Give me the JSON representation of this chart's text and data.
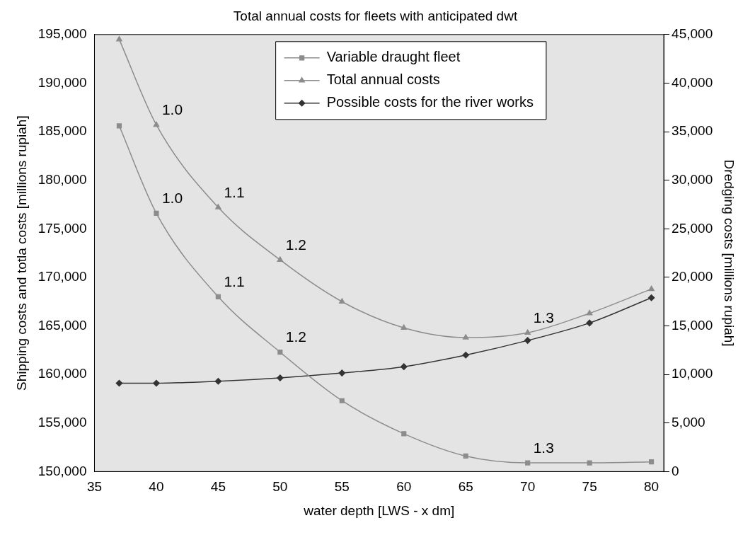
{
  "chart_data": {
    "type": "line",
    "title": "Total annual costs for fleets with anticipated dwt",
    "xlabel": "water depth [LWS - x dm]",
    "ylabel": "Shipping costs and totla costs [millions rupiah]",
    "y2label": "Dredging costs [millions rupiah]",
    "x": [
      37,
      40,
      45,
      50,
      55,
      60,
      65,
      70,
      75,
      80
    ],
    "series": [
      {
        "name": "Variable draught fleet",
        "color": "#8c8c8c",
        "marker": "square",
        "values": [
          185600,
          176600,
          168000,
          162300,
          157300,
          153900,
          151600,
          150900,
          150900,
          151000
        ]
      },
      {
        "name": "Total annual costs",
        "color": "#8c8c8c",
        "marker": "triangle",
        "values": [
          194500,
          185700,
          177200,
          171800,
          167500,
          164800,
          163800,
          164300,
          166300,
          168800
        ]
      },
      {
        "name": "Possible costs for the river works",
        "color": "#333333",
        "marker": "diamond",
        "axis": "y2",
        "values": [
          9100,
          9100,
          9300,
          9650,
          10150,
          10800,
          12000,
          13500,
          15300,
          17900
        ]
      }
    ],
    "xlim": [
      35,
      81
    ],
    "xticks": [
      35,
      40,
      45,
      50,
      55,
      60,
      65,
      70,
      75,
      80
    ],
    "ylim": [
      150000,
      195000
    ],
    "yticks": [
      {
        "value": 150000,
        "label": "150,000"
      },
      {
        "value": 155000,
        "label": "155,000"
      },
      {
        "value": 160000,
        "label": "160,000"
      },
      {
        "value": 165000,
        "label": "165,000"
      },
      {
        "value": 170000,
        "label": "170,000"
      },
      {
        "value": 175000,
        "label": "175,000"
      },
      {
        "value": 180000,
        "label": "180,000"
      },
      {
        "value": 185000,
        "label": "185,000"
      },
      {
        "value": 190000,
        "label": "190,000"
      },
      {
        "value": 195000,
        "label": "195,000"
      }
    ],
    "y2lim": [
      0,
      45000
    ],
    "y2ticks": [
      0,
      {
        "value": 5000,
        "label": "5,000"
      },
      {
        "value": 10000,
        "label": "10,000"
      },
      {
        "value": 15000,
        "label": "15,000"
      },
      {
        "value": 20000,
        "label": "20,000"
      },
      {
        "value": 25000,
        "label": "25,000"
      },
      {
        "value": 30000,
        "label": "30,000"
      },
      {
        "value": 35000,
        "label": "35,000"
      },
      {
        "value": 40000,
        "label": "40,000"
      },
      {
        "value": 45000,
        "label": "45,000"
      }
    ],
    "annotations": [
      {
        "text": "1.0",
        "x": 40,
        "y": 185700
      },
      {
        "text": "1.1",
        "x": 45,
        "y": 177200
      },
      {
        "text": "1.2",
        "x": 50,
        "y": 171800
      },
      {
        "text": "1.3",
        "x": 70,
        "y": 164300
      },
      {
        "text": "1.0",
        "x": 40,
        "y": 176600
      },
      {
        "text": "1.1",
        "x": 45,
        "y": 168000
      },
      {
        "text": "1.2",
        "x": 50,
        "y": 162300
      },
      {
        "text": "1.3",
        "x": 70,
        "y": 150900
      }
    ],
    "grid": false,
    "legend": "top",
    "line_style": "solid"
  }
}
